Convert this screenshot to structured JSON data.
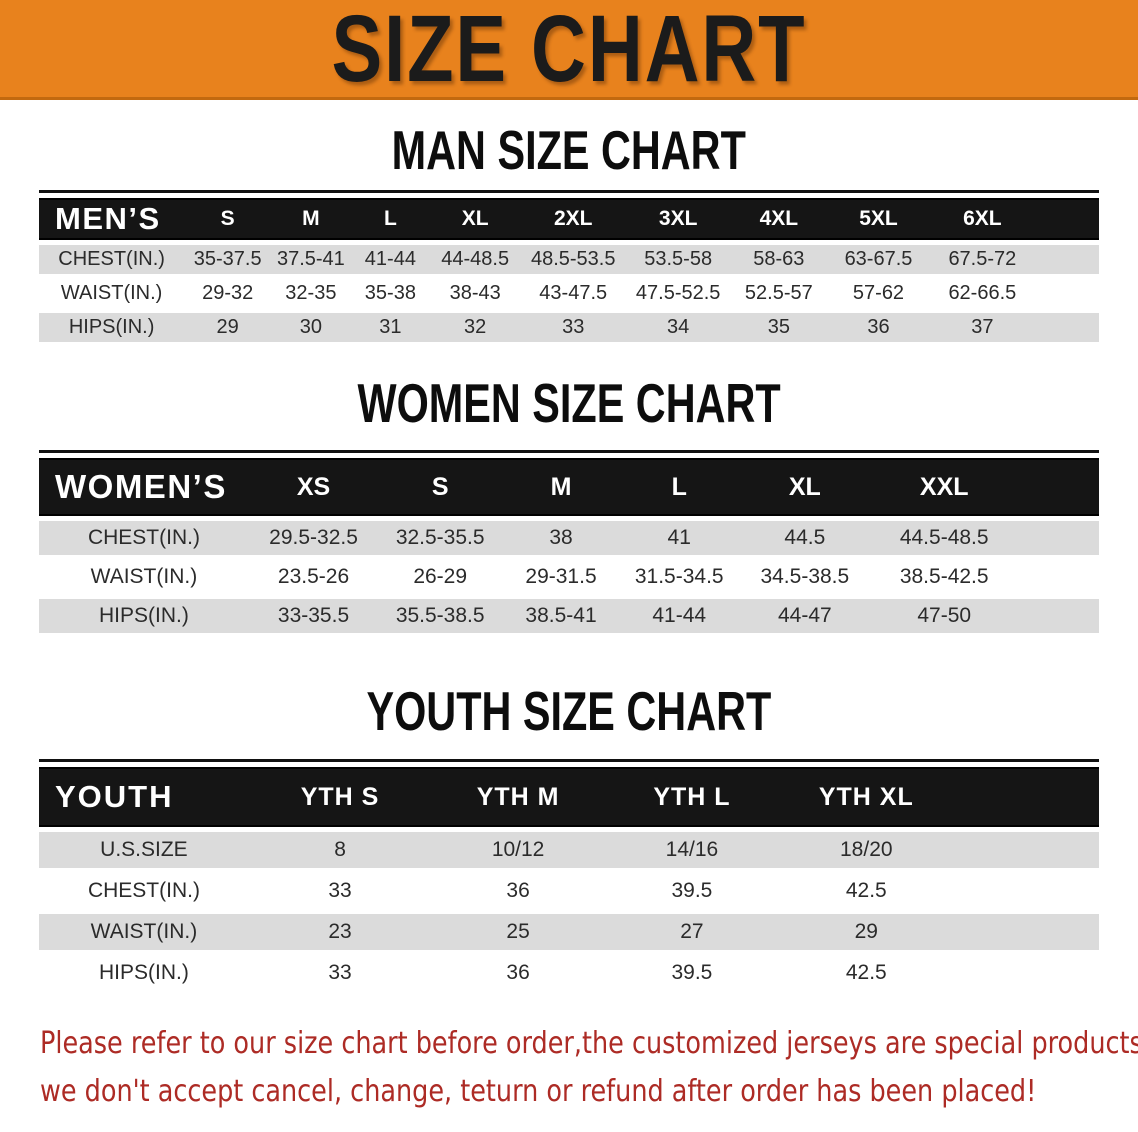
{
  "banner": {
    "title": "SIZE CHART"
  },
  "sections": [
    {
      "heading": "MAN SIZE CHART",
      "table": {
        "label": "MEN’S",
        "sizes": [
          "S",
          "M",
          "L",
          "XL",
          "2XL",
          "3XL",
          "4XL",
          "5XL",
          "6XL"
        ],
        "rows": [
          {
            "label": "CHEST(IN.)",
            "values": [
              "35-37.5",
              "37.5-41",
              "41-44",
              "44-48.5",
              "48.5-53.5",
              "53.5-58",
              "58-63",
              "63-67.5",
              "67.5-72"
            ]
          },
          {
            "label": "WAIST(IN.)",
            "values": [
              "29-32",
              "32-35",
              "35-38",
              "38-43",
              "43-47.5",
              "47.5-52.5",
              "52.5-57",
              "57-62",
              "62-66.5"
            ]
          },
          {
            "label": "HIPS(IN.)",
            "values": [
              "29",
              "30",
              "31",
              "32",
              "33",
              "34",
              "35",
              "36",
              "37"
            ]
          }
        ]
      }
    },
    {
      "heading": "WOMEN SIZE CHART",
      "table": {
        "label": "WOMEN’S",
        "sizes": [
          "XS",
          "S",
          "M",
          "L",
          "XL",
          "XXL"
        ],
        "rows": [
          {
            "label": "CHEST(IN.)",
            "values": [
              "29.5-32.5",
              "32.5-35.5",
              "38",
              "41",
              "44.5",
              "44.5-48.5"
            ]
          },
          {
            "label": "WAIST(IN.)",
            "values": [
              "23.5-26",
              "26-29",
              "29-31.5",
              "31.5-34.5",
              "34.5-38.5",
              "38.5-42.5"
            ]
          },
          {
            "label": "HIPS(IN.)",
            "values": [
              "33-35.5",
              "35.5-38.5",
              "38.5-41",
              "41-44",
              "44-47",
              "47-50"
            ]
          }
        ]
      }
    },
    {
      "heading": "YOUTH SIZE CHART",
      "table": {
        "label": "YOUTH",
        "sizes": [
          "YTH S",
          "YTH M",
          "YTH L",
          "YTH XL"
        ],
        "rows": [
          {
            "label": "U.S.SIZE",
            "values": [
              "8",
              "10/12",
              "14/16",
              "18/20"
            ]
          },
          {
            "label": "CHEST(IN.)",
            "values": [
              "33",
              "36",
              "39.5",
              "42.5"
            ]
          },
          {
            "label": "WAIST(IN.)",
            "values": [
              "23",
              "25",
              "27",
              "29"
            ]
          },
          {
            "label": "HIPS(IN.)",
            "values": [
              "33",
              "36",
              "39.5",
              "42.5"
            ]
          }
        ]
      }
    }
  ],
  "disclaimer": {
    "line1": "Please refer to our size chart before order,the customized jerseys are special products,",
    "line2": "we don't accept cancel, change, teturn or refund after order has been placed!"
  },
  "colors": {
    "banner_orange": "#E8821D",
    "table_header_black": "#151515",
    "stripe_gray": "#DBDBDB",
    "disclaimer_red": "#AD2B25"
  }
}
